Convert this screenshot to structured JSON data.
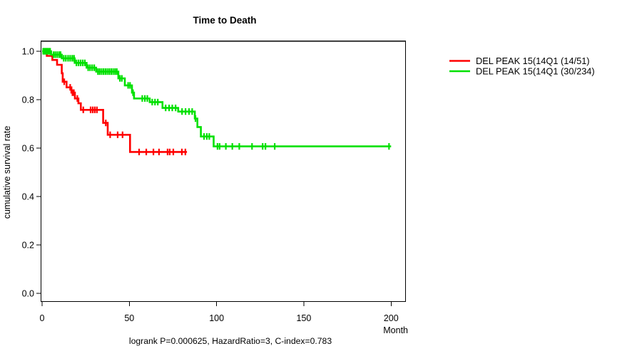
{
  "chart_data": {
    "type": "line",
    "subtype": "kaplan-meier-step",
    "title": "Time to Death",
    "xlabel": "Month",
    "ylabel": "cumulative survival rate",
    "annotation": "logrank P=0.000625, HazardRatio=3, C-index=0.783",
    "grid": false,
    "legend_position": "right-outside",
    "xlim": [
      0,
      200
    ],
    "ylim": [
      0.0,
      1.0
    ],
    "xticks": {
      "values": [
        0,
        50,
        100,
        150,
        200
      ],
      "labels": [
        "0",
        "50",
        "100",
        "150",
        "200"
      ]
    },
    "yticks": {
      "values": [
        0.0,
        0.2,
        0.4,
        0.6,
        0.8,
        1.0
      ],
      "labels": [
        "0.0",
        "0.2",
        "0.4",
        "0.6",
        "0.8",
        "1.0"
      ]
    },
    "series": [
      {
        "name": "DEL PEAK 15(14Q1 (14/51)",
        "color": "#ff0000",
        "end_x": 83,
        "steps": [
          [
            0,
            1.0
          ],
          [
            2.7,
            0.981
          ],
          [
            5.9,
            0.964
          ],
          [
            8.6,
            0.944
          ],
          [
            11.3,
            0.909
          ],
          [
            11.8,
            0.874
          ],
          [
            14.0,
            0.851
          ],
          [
            16.8,
            0.829
          ],
          [
            18.8,
            0.805
          ],
          [
            20.8,
            0.785
          ],
          [
            22.2,
            0.758
          ],
          [
            35.0,
            0.704
          ],
          [
            37.6,
            0.655
          ],
          [
            50.4,
            0.584
          ]
        ],
        "censors": [
          [
            12.7,
            0.874
          ],
          [
            16.1,
            0.851
          ],
          [
            17.4,
            0.829
          ],
          [
            18.2,
            0.829
          ],
          [
            20.2,
            0.805
          ],
          [
            23.6,
            0.758
          ],
          [
            27.8,
            0.758
          ],
          [
            29.0,
            0.758
          ],
          [
            30.2,
            0.758
          ],
          [
            31.4,
            0.758
          ],
          [
            36.5,
            0.704
          ],
          [
            39.0,
            0.655
          ],
          [
            43.3,
            0.655
          ],
          [
            46.1,
            0.655
          ],
          [
            55.6,
            0.584
          ],
          [
            59.7,
            0.584
          ],
          [
            63.8,
            0.584
          ],
          [
            67.0,
            0.584
          ],
          [
            71.9,
            0.584
          ],
          [
            73.1,
            0.584
          ],
          [
            75.2,
            0.584
          ],
          [
            80.1,
            0.584
          ],
          [
            82.1,
            0.584
          ]
        ]
      },
      {
        "name": "DEL PEAK 15(14Q1 (30/234)",
        "color": "#00e000",
        "end_x": 200,
        "steps": [
          [
            0,
            1.0
          ],
          [
            5.2,
            0.986
          ],
          [
            11.3,
            0.971
          ],
          [
            18.7,
            0.952
          ],
          [
            25.5,
            0.932
          ],
          [
            31.0,
            0.916
          ],
          [
            43.7,
            0.888
          ],
          [
            47.4,
            0.859
          ],
          [
            51.5,
            0.829
          ],
          [
            52.7,
            0.805
          ],
          [
            61.7,
            0.79
          ],
          [
            69.0,
            0.766
          ],
          [
            78.0,
            0.751
          ],
          [
            87.5,
            0.722
          ],
          [
            89.0,
            0.687
          ],
          [
            91.0,
            0.648
          ],
          [
            98.3,
            0.607
          ]
        ],
        "censors": [
          [
            0.6,
            1.0
          ],
          [
            1.1,
            1.0
          ],
          [
            1.7,
            1.0
          ],
          [
            2.2,
            1.0
          ],
          [
            2.7,
            1.0
          ],
          [
            3.2,
            1.0
          ],
          [
            3.9,
            1.0
          ],
          [
            4.6,
            1.0
          ],
          [
            6.6,
            0.986
          ],
          [
            7.6,
            0.986
          ],
          [
            8.7,
            0.986
          ],
          [
            9.8,
            0.986
          ],
          [
            10.6,
            0.986
          ],
          [
            12.4,
            0.971
          ],
          [
            13.6,
            0.971
          ],
          [
            14.9,
            0.971
          ],
          [
            16.1,
            0.971
          ],
          [
            17.3,
            0.971
          ],
          [
            18.3,
            0.971
          ],
          [
            19.7,
            0.952
          ],
          [
            20.9,
            0.952
          ],
          [
            22.1,
            0.952
          ],
          [
            23.3,
            0.952
          ],
          [
            24.5,
            0.952
          ],
          [
            26.4,
            0.932
          ],
          [
            27.5,
            0.932
          ],
          [
            28.7,
            0.932
          ],
          [
            29.9,
            0.932
          ],
          [
            32.0,
            0.916
          ],
          [
            33.0,
            0.916
          ],
          [
            34.1,
            0.916
          ],
          [
            35.2,
            0.916
          ],
          [
            36.3,
            0.916
          ],
          [
            37.4,
            0.916
          ],
          [
            38.5,
            0.916
          ],
          [
            39.6,
            0.916
          ],
          [
            40.7,
            0.916
          ],
          [
            41.8,
            0.916
          ],
          [
            42.8,
            0.916
          ],
          [
            44.6,
            0.888
          ],
          [
            45.7,
            0.888
          ],
          [
            49.3,
            0.859
          ],
          [
            50.4,
            0.859
          ],
          [
            52.1,
            0.829
          ],
          [
            57.4,
            0.805
          ],
          [
            58.9,
            0.805
          ],
          [
            60.3,
            0.805
          ],
          [
            63.1,
            0.79
          ],
          [
            64.7,
            0.79
          ],
          [
            66.3,
            0.79
          ],
          [
            70.8,
            0.766
          ],
          [
            72.8,
            0.766
          ],
          [
            74.6,
            0.766
          ],
          [
            76.5,
            0.766
          ],
          [
            80.2,
            0.751
          ],
          [
            82.2,
            0.751
          ],
          [
            84.2,
            0.751
          ],
          [
            86.0,
            0.751
          ],
          [
            87.9,
            0.722
          ],
          [
            92.8,
            0.648
          ],
          [
            94.4,
            0.648
          ],
          [
            95.8,
            0.648
          ],
          [
            100.5,
            0.607
          ],
          [
            101.7,
            0.607
          ],
          [
            105.3,
            0.607
          ],
          [
            109.0,
            0.607
          ],
          [
            113.0,
            0.607
          ],
          [
            120.3,
            0.607
          ],
          [
            126.4,
            0.607
          ],
          [
            128.0,
            0.607
          ],
          [
            133.3,
            0.607
          ],
          [
            198.8,
            0.607
          ]
        ]
      }
    ]
  }
}
